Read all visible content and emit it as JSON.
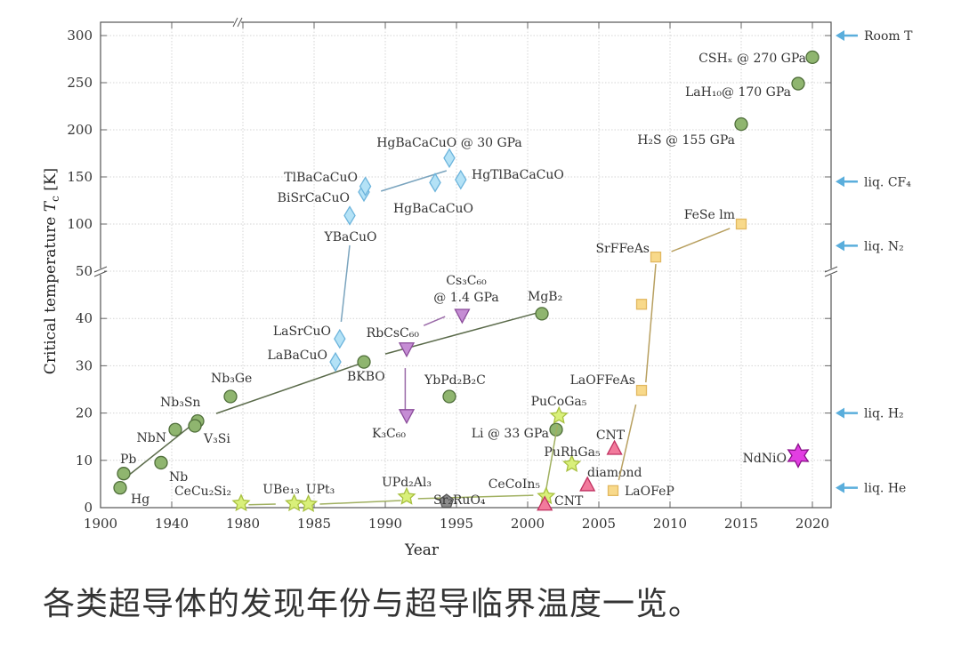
{
  "caption": "各类超导体的发现年份与超导临界温度一览。",
  "chart_data": {
    "type": "scatter",
    "title": "",
    "xlabel": "Year",
    "ylabel": {
      "text": "Critical temperature ",
      "var": "T",
      "sub": "c",
      "unit": " [K]"
    },
    "x_ticks": [
      1900,
      1940,
      1980,
      1985,
      1990,
      1995,
      2000,
      2005,
      2010,
      2015,
      2020
    ],
    "y_ticks_lower": [
      0,
      10,
      20,
      30,
      40,
      50
    ],
    "y_ticks_upper": [
      100,
      150,
      200,
      250,
      300
    ],
    "x_axis_break": "between 1940 and 1980 (linear 5-year spacing from 1980)",
    "y_axis_break": 50,
    "ylim": [
      0,
      310
    ],
    "grid": true,
    "colors": {
      "conventional": {
        "fill": "#8fb56f",
        "stroke": "#4f6e3a",
        "line": "#5b6b4b"
      },
      "cuprate": {
        "fill": "#b4e2f6",
        "stroke": "#6cb4dc",
        "line": "#7aa4be"
      },
      "fulleride": {
        "fill": "#c58dd4",
        "stroke": "#8a4b9a",
        "line": "#9a6aa8"
      },
      "heavy_fermion": {
        "fill": "#d9f07a",
        "stroke": "#a8c040",
        "line": "#a0b060"
      },
      "ruthenate": {
        "fill": "#8c8c8c",
        "stroke": "#555555",
        "line": "#555555"
      },
      "carbon": {
        "fill": "#f27a9c",
        "stroke": "#c03060",
        "line": "#c03060"
      },
      "iron_based": {
        "fill": "#f8d98a",
        "stroke": "#e2b860",
        "line": "#b8a060"
      },
      "nickelate": {
        "fill": "#e23ee2",
        "stroke": "#8a108a",
        "line": "#8a108a"
      },
      "reference_arrow": "#5aaedc"
    },
    "series": [
      {
        "family": "conventional",
        "marker": "circle",
        "points": [
          {
            "label": "Hg",
            "x": 1911,
            "y": 4.2
          },
          {
            "label": "Pb",
            "x": 1913,
            "y": 7.2
          },
          {
            "label": "Nb",
            "x": 1934,
            "y": 9.5
          },
          {
            "label": "NbN",
            "x": 1942,
            "y": 16.5
          },
          {
            "label": "Nb₃Sn",
            "x": 1954.5,
            "y": 18.3
          },
          {
            "label": "V₃Si",
            "x": 1953,
            "y": 17.3
          },
          {
            "label": "Nb₃Ge",
            "x": 1973,
            "y": 23.5
          },
          {
            "label": "BKBO",
            "x": 1988.5,
            "y": 30.8
          },
          {
            "label": "MgB₂",
            "x": 2001,
            "y": 41
          },
          {
            "label": "YbPd₂B₂C",
            "x": 1994.5,
            "y": 23.5
          },
          {
            "label": "Li @ 33 GPa",
            "x": 2002,
            "y": 16.5
          },
          {
            "label": "H₂S @ 155 GPa",
            "x": 2015,
            "y": 206
          },
          {
            "label": "LaH₁₀@  170 GPa",
            "x": 2019,
            "y": 249
          },
          {
            "label": "CSHₓ @  270 GPa",
            "x": 2020,
            "y": 277
          }
        ],
        "lines": [
          [
            [
              1915,
              6.6
            ],
            [
              1950,
              17.1
            ]
          ],
          [
            [
              1965,
              19.9
            ],
            [
              1988.1,
              30.3
            ]
          ],
          [
            [
              1990,
              32.5
            ],
            [
              2000.7,
              41.2
            ]
          ]
        ]
      },
      {
        "family": "cuprate",
        "marker": "diamond",
        "points": [
          {
            "label": "LaBaCuO",
            "x": 1986.5,
            "y": 30.8
          },
          {
            "label": "LaSrCuO",
            "x": 1986.8,
            "y": 35.7
          },
          {
            "label": "YBaCuO",
            "x": 1987.5,
            "y": 109
          },
          {
            "label": "BiSrCaCuO",
            "x": 1988.5,
            "y": 134
          },
          {
            "label": "TlBaCaCuO",
            "x": 1988.6,
            "y": 140
          },
          {
            "label": "HgBaCaCuO",
            "x": 1993.5,
            "y": 144
          },
          {
            "label": "HgBaCaCuO @ 30 GPa",
            "x": 1994.5,
            "y": 170
          },
          {
            "label": "HgTlBaCaCuO",
            "x": 1995.3,
            "y": 147
          }
        ],
        "lines": [
          [
            [
              1986.9,
              39.3
            ],
            [
              1987.5,
              77.4
            ]
          ],
          [
            [
              1989.7,
              134.9
            ],
            [
              1994.3,
              156.6
            ]
          ]
        ]
      },
      {
        "family": "fulleride",
        "marker": "triangle-down",
        "points": [
          {
            "label": "RbCsC₆₀",
            "x": 1991.5,
            "y": 33.5
          },
          {
            "label": "K₃C₆₀",
            "x": 1991.5,
            "y": 19.4
          },
          {
            "label": "Cs₃C₆₀",
            "label2": "@ 1.4 GPa",
            "x": 1995.4,
            "y": 40.6
          }
        ],
        "lines": [
          [
            [
              1991.4,
              29.5
            ],
            [
              1991.4,
              20.3
            ]
          ],
          [
            [
              1992.7,
              38.5
            ],
            [
              1994.2,
              40.4
            ]
          ]
        ]
      },
      {
        "family": "heavy_fermion",
        "marker": "star",
        "points": [
          {
            "label": "CeCu₂Si₂",
            "x": 1979,
            "y": 0.9
          },
          {
            "label": "UBe₁₃",
            "x": 1983.6,
            "y": 0.9
          },
          {
            "label": "UPt₃",
            "x": 1984.6,
            "y": 0.75
          },
          {
            "label": "UPd₂Al₃",
            "x": 1991.5,
            "y": 2.3
          },
          {
            "label": "CeCoIn₅",
            "x": 2001.3,
            "y": 2.4
          },
          {
            "label": "PuCoGa₅",
            "x": 2002.2,
            "y": 19.4
          },
          {
            "label": "PuRhGa₅",
            "x": 2003.1,
            "y": 9.2
          }
        ],
        "lines": [
          [
            [
              1980.4,
              0.6
            ],
            [
              1982.3,
              0.75
            ]
          ],
          [
            [
              1985.4,
              0.75
            ],
            [
              1991.1,
              1.5
            ]
          ],
          [
            [
              1992.3,
              1.9
            ],
            [
              2000.4,
              2.6
            ]
          ],
          [
            [
              2001.3,
              3.9
            ],
            [
              2002.1,
              17.5
            ]
          ]
        ]
      },
      {
        "family": "ruthenate",
        "marker": "pentagon",
        "points": [
          {
            "label": "Sr₂RuO₄",
            "x": 1994.3,
            "y": 1.3
          }
        ],
        "lines": []
      },
      {
        "family": "carbon",
        "marker": "triangle-up",
        "points": [
          {
            "label": "CNT",
            "x": 2001.2,
            "y": 0.8
          },
          {
            "label": "diamond",
            "x": 2004.2,
            "y": 4.9
          },
          {
            "label": "CNT",
            "x": 2006.1,
            "y": 12.6
          }
        ],
        "lines": []
      },
      {
        "family": "iron_based",
        "marker": "square",
        "points": [
          {
            "label": "LaOFeP",
            "x": 2006,
            "y": 3.6
          },
          {
            "label": "LaOFFeAs",
            "x": 2008,
            "y": 24.8
          },
          {
            "label": "",
            "x": 2008,
            "y": 43
          },
          {
            "label": "SrFFeAs",
            "x": 2009,
            "y": 65
          },
          {
            "label": "FeSe   lm",
            "x": 2015,
            "y": 100
          }
        ],
        "lines": [
          [
            [
              2006.4,
              5.8
            ],
            [
              2007.6,
              21.8
            ]
          ],
          [
            [
              2008.3,
              26.5
            ],
            [
              2009,
              57.5
            ]
          ],
          [
            [
              2010.1,
              70.8
            ],
            [
              2014.2,
              95.3
            ]
          ]
        ]
      },
      {
        "family": "nickelate",
        "marker": "hexagram",
        "points": [
          {
            "label": "NdNiO",
            "x": 2019,
            "y": 11
          }
        ],
        "lines": []
      }
    ],
    "reference_lines": [
      {
        "label": "Room T",
        "y": 300
      },
      {
        "label": "liq. CF₄",
        "y": 145
      },
      {
        "label": "liq. N₂",
        "y": 77
      },
      {
        "label": "liq. H₂",
        "y": 20
      },
      {
        "label": "liq. He",
        "y": 4.2
      }
    ]
  }
}
